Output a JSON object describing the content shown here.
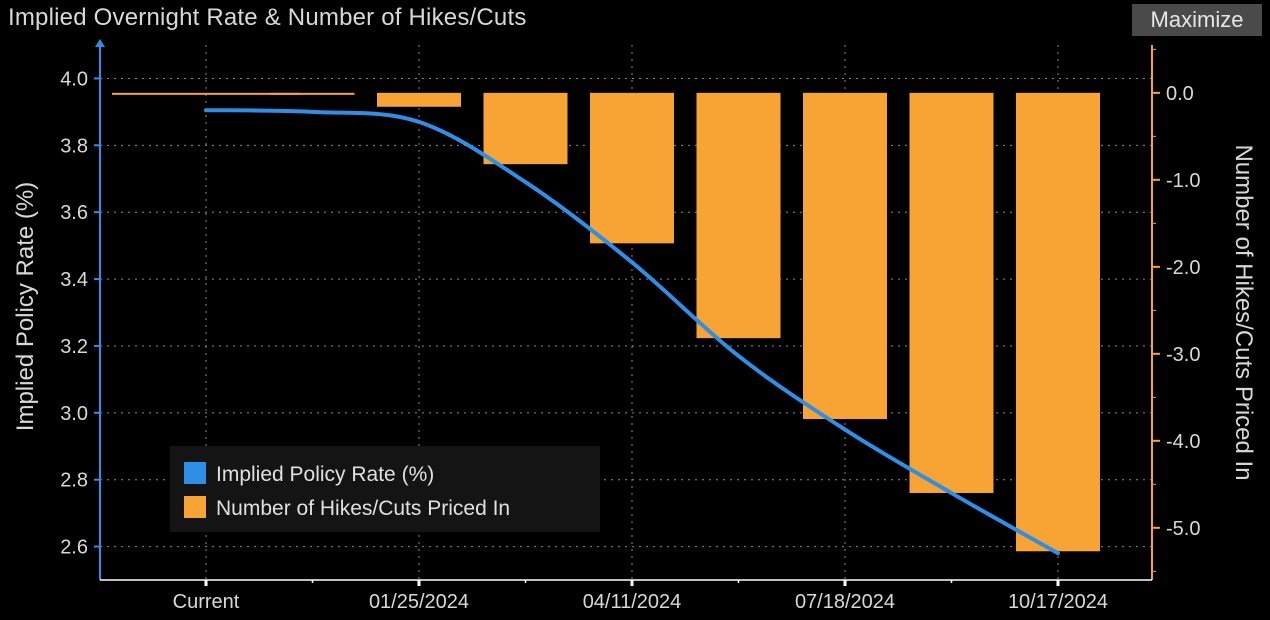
{
  "header": {
    "title": "Implied Overnight Rate & Number of Hikes/Cuts",
    "maximize_label": "Maximize"
  },
  "colors": {
    "line": "#2f8fe6",
    "bar": "#f7a434",
    "left_axis": "#2f8fe6",
    "right_axis": "#f7a434",
    "grid": "#8a8a8a",
    "background": "#000000"
  },
  "chart_data": {
    "type": "bar+line",
    "title": "Implied Overnight Rate & Number of Hikes/Cuts",
    "categories": [
      "Current",
      "",
      "01/25/2024",
      "",
      "04/11/2024",
      "",
      "07/18/2024",
      "",
      "10/17/2024"
    ],
    "x_tick_labels": [
      "Current",
      "01/25/2024",
      "04/11/2024",
      "07/18/2024",
      "10/17/2024"
    ],
    "series": [
      {
        "name": "Implied Policy Rate (%)",
        "type": "line",
        "axis": "left",
        "values": [
          3.905,
          3.9,
          3.87,
          3.69,
          3.45,
          3.17,
          2.95,
          2.76,
          2.58
        ]
      },
      {
        "name": "Number of Hikes/Cuts Priced In",
        "type": "bar",
        "axis": "right",
        "values": [
          0.0,
          -0.02,
          -0.16,
          -0.82,
          -1.73,
          -2.82,
          -3.75,
          -4.6,
          -5.27
        ]
      }
    ],
    "left_axis": {
      "label": "Implied Policy Rate (%)",
      "ylim": [
        2.5,
        4.1
      ],
      "ticks": [
        "4.0",
        "3.8",
        "3.6",
        "3.4",
        "3.2",
        "3.0",
        "2.8",
        "2.6"
      ]
    },
    "right_axis": {
      "label": "Number of Hikes/Cuts Priced In",
      "ylim": [
        -5.6,
        0.55
      ],
      "ticks": [
        "0.0",
        "-1.0",
        "-2.0",
        "-3.0",
        "-4.0",
        "-5.0"
      ]
    },
    "grid": true,
    "legend": {
      "position": "bottom-left",
      "entries": [
        "Implied Policy Rate (%)",
        "Number of Hikes/Cuts Priced In"
      ]
    }
  }
}
